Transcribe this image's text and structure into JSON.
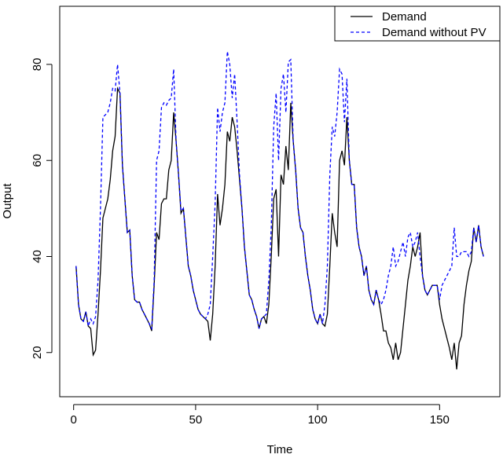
{
  "chart_data": {
    "type": "line",
    "x_label": "Time",
    "y_label": "Output",
    "x": [
      1,
      2,
      3,
      4,
      5,
      6,
      7,
      8,
      9,
      10,
      11,
      12,
      13,
      14,
      15,
      16,
      17,
      18,
      19,
      20,
      21,
      22,
      23,
      24,
      25,
      26,
      27,
      28,
      29,
      30,
      31,
      32,
      33,
      34,
      35,
      36,
      37,
      38,
      39,
      40,
      41,
      42,
      43,
      44,
      45,
      46,
      47,
      48,
      49,
      50,
      51,
      52,
      53,
      54,
      55,
      56,
      57,
      58,
      59,
      60,
      61,
      62,
      63,
      64,
      65,
      66,
      67,
      68,
      69,
      70,
      71,
      72,
      73,
      74,
      75,
      76,
      77,
      78,
      79,
      80,
      81,
      82,
      83,
      84,
      85,
      86,
      87,
      88,
      89,
      90,
      91,
      92,
      93,
      94,
      95,
      96,
      97,
      98,
      99,
      100,
      101,
      102,
      103,
      104,
      105,
      106,
      107,
      108,
      109,
      110,
      111,
      112,
      113,
      114,
      115,
      116,
      117,
      118,
      119,
      120,
      121,
      122,
      123,
      124,
      125,
      126,
      127,
      128,
      129,
      130,
      131,
      132,
      133,
      134,
      135,
      136,
      137,
      138,
      139,
      140,
      141,
      142,
      143,
      144,
      145,
      146,
      147,
      148,
      149,
      150,
      151,
      152,
      153,
      154,
      155,
      156,
      157,
      158,
      159,
      160,
      161,
      162,
      163,
      164,
      165,
      166,
      167,
      168
    ],
    "series": [
      {
        "name": "Demand",
        "color": "#000000",
        "dash": false,
        "values": [
          38,
          30,
          27,
          26.5,
          28.5,
          25.5,
          25,
          19.5,
          20.5,
          28,
          37,
          48,
          50,
          52,
          56,
          62,
          65,
          75,
          74,
          59,
          52,
          45,
          45.5,
          36,
          31,
          30.5,
          30.5,
          29,
          28,
          27,
          26,
          24.5,
          34,
          45,
          43.5,
          51,
          52,
          52,
          58,
          60,
          70,
          64,
          57,
          49,
          50,
          44,
          38,
          36,
          33,
          31,
          29,
          28,
          27.5,
          27,
          26.5,
          22.5,
          28,
          38,
          53,
          46.5,
          50,
          55,
          66,
          64,
          69,
          67,
          62,
          56,
          50,
          42,
          37,
          32,
          31,
          29,
          27.5,
          25,
          27,
          27.5,
          26,
          30,
          40,
          52,
          54,
          40,
          57,
          55,
          63,
          58,
          72,
          64,
          58,
          50,
          46,
          45,
          40,
          36,
          33,
          29,
          27,
          26,
          28,
          26,
          25.5,
          28,
          38,
          49,
          45,
          42,
          60,
          62,
          59,
          69,
          60,
          55,
          55,
          46,
          42,
          40,
          36,
          38,
          33,
          31,
          30,
          33,
          31,
          28,
          24.5,
          24.5,
          22,
          21,
          18.5,
          22,
          18.5,
          20,
          25,
          30,
          35,
          38,
          42,
          40,
          42,
          45,
          36,
          33,
          32,
          33,
          34,
          34,
          34,
          30,
          27,
          25,
          23,
          21,
          18.5,
          22,
          16.5,
          22,
          23.5,
          30,
          34,
          37,
          39,
          46,
          43,
          46.5,
          42,
          40
        ]
      },
      {
        "name": "Demand without PV",
        "color": "#0000ff",
        "dash": true,
        "values": [
          38,
          30,
          27,
          26.5,
          28.5,
          25.5,
          27,
          26,
          27.5,
          35,
          50,
          69,
          69.5,
          70,
          72,
          75,
          74.5,
          80,
          74,
          59,
          52,
          45,
          45.5,
          36,
          31,
          30.5,
          30.5,
          29,
          28,
          27,
          26,
          25,
          35,
          60,
          62,
          71,
          72,
          71.5,
          72.5,
          73,
          79,
          64,
          57,
          49.5,
          50,
          44,
          38,
          36,
          33,
          31,
          29,
          28,
          27.5,
          27,
          28,
          30,
          40,
          51,
          71,
          66,
          70,
          72,
          82.7,
          80,
          73,
          78,
          68,
          57,
          50,
          42,
          37,
          32,
          31,
          29,
          27.5,
          25,
          27,
          27.5,
          28,
          35,
          46,
          67,
          74,
          60,
          75,
          78,
          70,
          80.5,
          81,
          64,
          58,
          50,
          46,
          45,
          40,
          36,
          33,
          29,
          27,
          26,
          28,
          26,
          30,
          38,
          57,
          67,
          65,
          70,
          79,
          78,
          68,
          77,
          60,
          55,
          55,
          46,
          42,
          40,
          36,
          38,
          33,
          31,
          30,
          33,
          31,
          30,
          31,
          33,
          36,
          38,
          42,
          38,
          39,
          41,
          43,
          40,
          44,
          45,
          42,
          43,
          45,
          40,
          36,
          33,
          32,
          33,
          34,
          34,
          34,
          31,
          34,
          35,
          36,
          37,
          38,
          46,
          40,
          40,
          41,
          41,
          41,
          40,
          41,
          46,
          43,
          46.5,
          42,
          40
        ]
      }
    ],
    "xlim": [
      -5.7,
      174.7
    ],
    "ylim": [
      10.8,
      92.1
    ],
    "xticks": [
      0,
      50,
      100,
      150
    ],
    "yticks": [
      20,
      40,
      60,
      80
    ],
    "legend": "top-right"
  }
}
